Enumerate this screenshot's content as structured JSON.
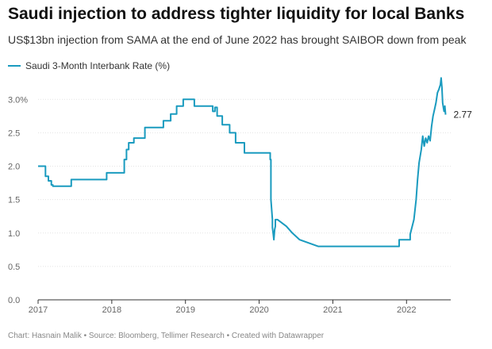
{
  "header": {
    "title": "Saudi injection to address tighter liquidity for local Banks",
    "subtitle": "US$13bn injection from SAMA at the end of June 2022 has brought SAIBOR down from peak"
  },
  "footer": {
    "credit": "Chart: Hasnain Malik • Source: Bloomberg, Tellimer Research • Created with Datawrapper"
  },
  "chart_data": {
    "type": "line",
    "title": "Saudi injection to address tighter liquidity for local Banks",
    "subtitle": "US$13bn injection from SAMA at the end of June 2022 has brought SAIBOR down from peak",
    "xlabel": "",
    "ylabel": "",
    "xlim": [
      2017.0,
      2022.6
    ],
    "ylim": [
      0,
      3.3
    ],
    "grid": true,
    "legend": "top-left",
    "x_tick_labels": [
      "2017",
      "2018",
      "2019",
      "2020",
      "2021",
      "2022"
    ],
    "x_ticks": [
      2017,
      2018,
      2019,
      2020,
      2021,
      2022
    ],
    "y_ticks": [
      0,
      0.5,
      1.0,
      1.5,
      2.0,
      2.5,
      3.0
    ],
    "y_tick_labels": [
      "0.0",
      "0.5",
      "1.0",
      "1.5",
      "2.0",
      "2.5",
      "3.0%"
    ],
    "end_label": "2.77",
    "series": [
      {
        "name": "Saudi 3-Month Interbank Rate (%)",
        "color": "#1a9bbf",
        "x": [
          2017.0,
          2017.1,
          2017.1,
          2017.14,
          2017.14,
          2017.18,
          2017.18,
          2017.2,
          2017.2,
          2017.45,
          2017.45,
          2017.93,
          2017.93,
          2018.17,
          2018.17,
          2018.2,
          2018.2,
          2018.23,
          2018.23,
          2018.3,
          2018.3,
          2018.45,
          2018.45,
          2018.7,
          2018.7,
          2018.8,
          2018.8,
          2018.88,
          2018.88,
          2018.97,
          2018.97,
          2019.12,
          2019.12,
          2019.37,
          2019.37,
          2019.4,
          2019.4,
          2019.43,
          2019.43,
          2019.5,
          2019.5,
          2019.6,
          2019.6,
          2019.68,
          2019.68,
          2019.8,
          2019.8,
          2020.15,
          2020.15,
          2020.16,
          2020.16,
          2020.18,
          2020.18,
          2020.19,
          2020.2,
          2020.21,
          2020.22,
          2020.22,
          2020.25,
          2020.25,
          2020.37,
          2020.37,
          2020.45,
          2020.45,
          2020.55,
          2020.55,
          2020.8,
          2020.8,
          2021.9,
          2021.9,
          2022.05,
          2022.05,
          2022.1,
          2022.13,
          2022.15,
          2022.17,
          2022.2,
          2022.22,
          2022.24,
          2022.26,
          2022.28,
          2022.3,
          2022.32,
          2022.34,
          2022.36,
          2022.38,
          2022.4,
          2022.42,
          2022.44,
          2022.46,
          2022.47,
          2022.48,
          2022.49,
          2022.5,
          2022.51,
          2022.52,
          2022.53
        ],
        "y": [
          2.0,
          2.0,
          1.85,
          1.85,
          1.78,
          1.78,
          1.72,
          1.72,
          1.7,
          1.7,
          1.8,
          1.8,
          1.9,
          1.9,
          2.1,
          2.1,
          2.25,
          2.25,
          2.35,
          2.35,
          2.42,
          2.42,
          2.58,
          2.58,
          2.68,
          2.68,
          2.78,
          2.78,
          2.9,
          2.9,
          3.0,
          3.0,
          2.9,
          2.9,
          2.82,
          2.82,
          2.88,
          2.88,
          2.75,
          2.75,
          2.62,
          2.62,
          2.5,
          2.5,
          2.35,
          2.35,
          2.2,
          2.2,
          2.1,
          2.1,
          1.5,
          1.2,
          1.08,
          1.0,
          0.9,
          1.05,
          1.1,
          1.2,
          1.2,
          1.2,
          1.1,
          1.1,
          1.0,
          1.0,
          0.9,
          0.9,
          0.8,
          0.8,
          0.8,
          0.9,
          0.9,
          0.98,
          1.2,
          1.5,
          1.8,
          2.05,
          2.25,
          2.45,
          2.3,
          2.42,
          2.35,
          2.45,
          2.38,
          2.6,
          2.75,
          2.85,
          2.95,
          3.1,
          3.15,
          3.22,
          3.32,
          3.18,
          2.95,
          2.88,
          2.82,
          2.9,
          2.77
        ]
      }
    ]
  }
}
